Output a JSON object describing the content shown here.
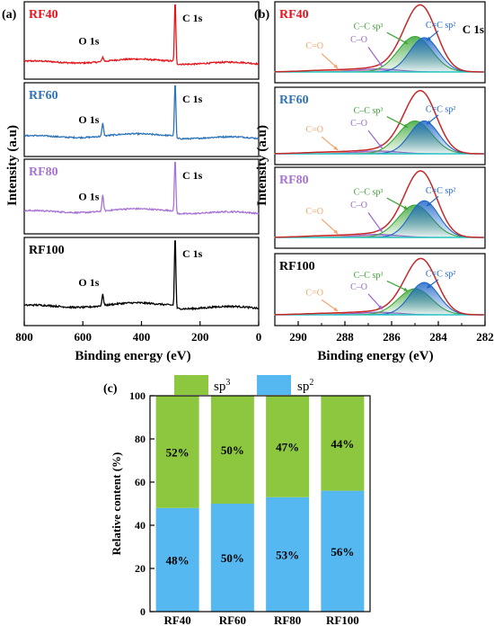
{
  "colors": {
    "RF40": "#e8141b",
    "RF60": "#2f73b8",
    "RF80": "#a873d6",
    "RF100": "#000000",
    "sp3": "#8dc63f",
    "sp2": "#55b8f0",
    "envelope": "#c62828",
    "baseline": "#26c6c6",
    "cc_sp2_fit": "#1e66c8",
    "cc_sp3_fit": "#3aa635",
    "co_fit": "#9966cc",
    "ceqo_fit": "#f2a46b"
  },
  "panel_a": {
    "tag": "(a)",
    "ylabel": "Intensity (a.u)",
    "xlabel": "Binding energy (eV)",
    "samples": [
      {
        "name": "RF40",
        "o1s": "O 1s",
        "c1s": "C 1s"
      },
      {
        "name": "RF60",
        "o1s": "O 1s",
        "c1s": "C 1s"
      },
      {
        "name": "RF80",
        "o1s": "O 1s",
        "c1s": "C 1s"
      },
      {
        "name": "RF100",
        "o1s": "O 1s",
        "c1s": "C 1s"
      }
    ]
  },
  "panel_b": {
    "tag": "(b)",
    "title": "C 1s",
    "ylabel": "Intensity (a.u)",
    "xlabel": "Binding energy (eV)",
    "components": {
      "ceqo": "C=O",
      "co": "C–O",
      "ccsp3": "C–C sp³",
      "ccsp2": "C=C sp²"
    },
    "samples": [
      {
        "name": "RF40"
      },
      {
        "name": "RF60"
      },
      {
        "name": "RF80"
      },
      {
        "name": "RF100"
      }
    ]
  },
  "chart_data": [
    {
      "type": "line",
      "panel": "(a)",
      "xlabel": "Binding energy (eV)",
      "ylabel": "Intensity (a.u)",
      "xlim": [
        800,
        0
      ],
      "xticks": [
        800,
        600,
        400,
        200,
        0
      ],
      "series": [
        {
          "name": "RF40",
          "peaks": [
            {
              "label": "O 1s",
              "x": 532,
              "height": 0.06
            },
            {
              "label": "C 1s",
              "x": 285,
              "height": 0.95
            }
          ]
        },
        {
          "name": "RF60",
          "peaks": [
            {
              "label": "O 1s",
              "x": 532,
              "height": 0.18
            },
            {
              "label": "C 1s",
              "x": 285,
              "height": 0.95
            }
          ]
        },
        {
          "name": "RF80",
          "peaks": [
            {
              "label": "O 1s",
              "x": 532,
              "height": 0.22
            },
            {
              "label": "C 1s",
              "x": 285,
              "height": 0.95
            }
          ]
        },
        {
          "name": "RF100",
          "peaks": [
            {
              "label": "O 1s",
              "x": 532,
              "height": 0.13
            },
            {
              "label": "C 1s",
              "x": 285,
              "height": 0.95
            }
          ]
        }
      ]
    },
    {
      "type": "area",
      "panel": "(b)",
      "title": "C 1s",
      "xlabel": "Binding energy (eV)",
      "ylabel": "Intensity (a.u)",
      "xlim": [
        291,
        282
      ],
      "xticks": [
        290,
        288,
        286,
        284,
        282
      ],
      "series": [
        {
          "name": "RF40",
          "components": [
            {
              "label": "C=C sp²",
              "center": 284.6,
              "height": 0.56,
              "width": 0.62
            },
            {
              "label": "C–C sp³",
              "center": 285.0,
              "height": 0.58,
              "width": 0.72
            },
            {
              "label": "C–O",
              "center": 286.6,
              "height": 0.05,
              "width": 0.9
            },
            {
              "label": "C=O",
              "center": 288.5,
              "height": 0.03,
              "width": 1.2
            }
          ]
        },
        {
          "name": "RF60",
          "components": [
            {
              "label": "C=C sp²",
              "center": 284.6,
              "height": 0.57,
              "width": 0.62
            },
            {
              "label": "C–C sp³",
              "center": 285.0,
              "height": 0.57,
              "width": 0.72
            },
            {
              "label": "C–O",
              "center": 286.6,
              "height": 0.05,
              "width": 0.9
            },
            {
              "label": "C=O",
              "center": 288.5,
              "height": 0.03,
              "width": 1.2
            }
          ]
        },
        {
          "name": "RF80",
          "components": [
            {
              "label": "C=C sp²",
              "center": 284.6,
              "height": 0.6,
              "width": 0.62
            },
            {
              "label": "C–C sp³",
              "center": 285.0,
              "height": 0.53,
              "width": 0.72
            },
            {
              "label": "C–O",
              "center": 286.6,
              "height": 0.05,
              "width": 0.9
            },
            {
              "label": "C=O",
              "center": 288.5,
              "height": 0.03,
              "width": 1.2
            }
          ]
        },
        {
          "name": "RF100",
          "components": [
            {
              "label": "C=C sp²",
              "center": 284.6,
              "height": 0.62,
              "width": 0.62
            },
            {
              "label": "C–C sp³",
              "center": 285.0,
              "height": 0.5,
              "width": 0.72
            },
            {
              "label": "C–O",
              "center": 286.6,
              "height": 0.05,
              "width": 0.9
            },
            {
              "label": "C=O",
              "center": 288.5,
              "height": 0.03,
              "width": 1.2
            }
          ]
        }
      ]
    },
    {
      "type": "bar",
      "panel": "(c)",
      "stacked": true,
      "ylabel": "Relative content (%)",
      "ylim": [
        0,
        100
      ],
      "yticks": [
        0,
        20,
        40,
        60,
        80,
        100
      ],
      "categories": [
        "RF40",
        "RF60",
        "RF80",
        "RF100"
      ],
      "legend_position": "top",
      "series": [
        {
          "name": "sp²",
          "values": [
            48,
            50,
            53,
            56
          ],
          "labels": [
            "48%",
            "50%",
            "53%",
            "56%"
          ]
        },
        {
          "name": "sp³",
          "values": [
            52,
            50,
            47,
            44
          ],
          "labels": [
            "52%",
            "50%",
            "47%",
            "44%"
          ]
        }
      ]
    }
  ],
  "panel_c": {
    "tag": "(c)",
    "legend": {
      "sp3_base": "sp",
      "sp3_sup": "3",
      "sp2_base": "sp",
      "sp2_sup": "2"
    }
  }
}
